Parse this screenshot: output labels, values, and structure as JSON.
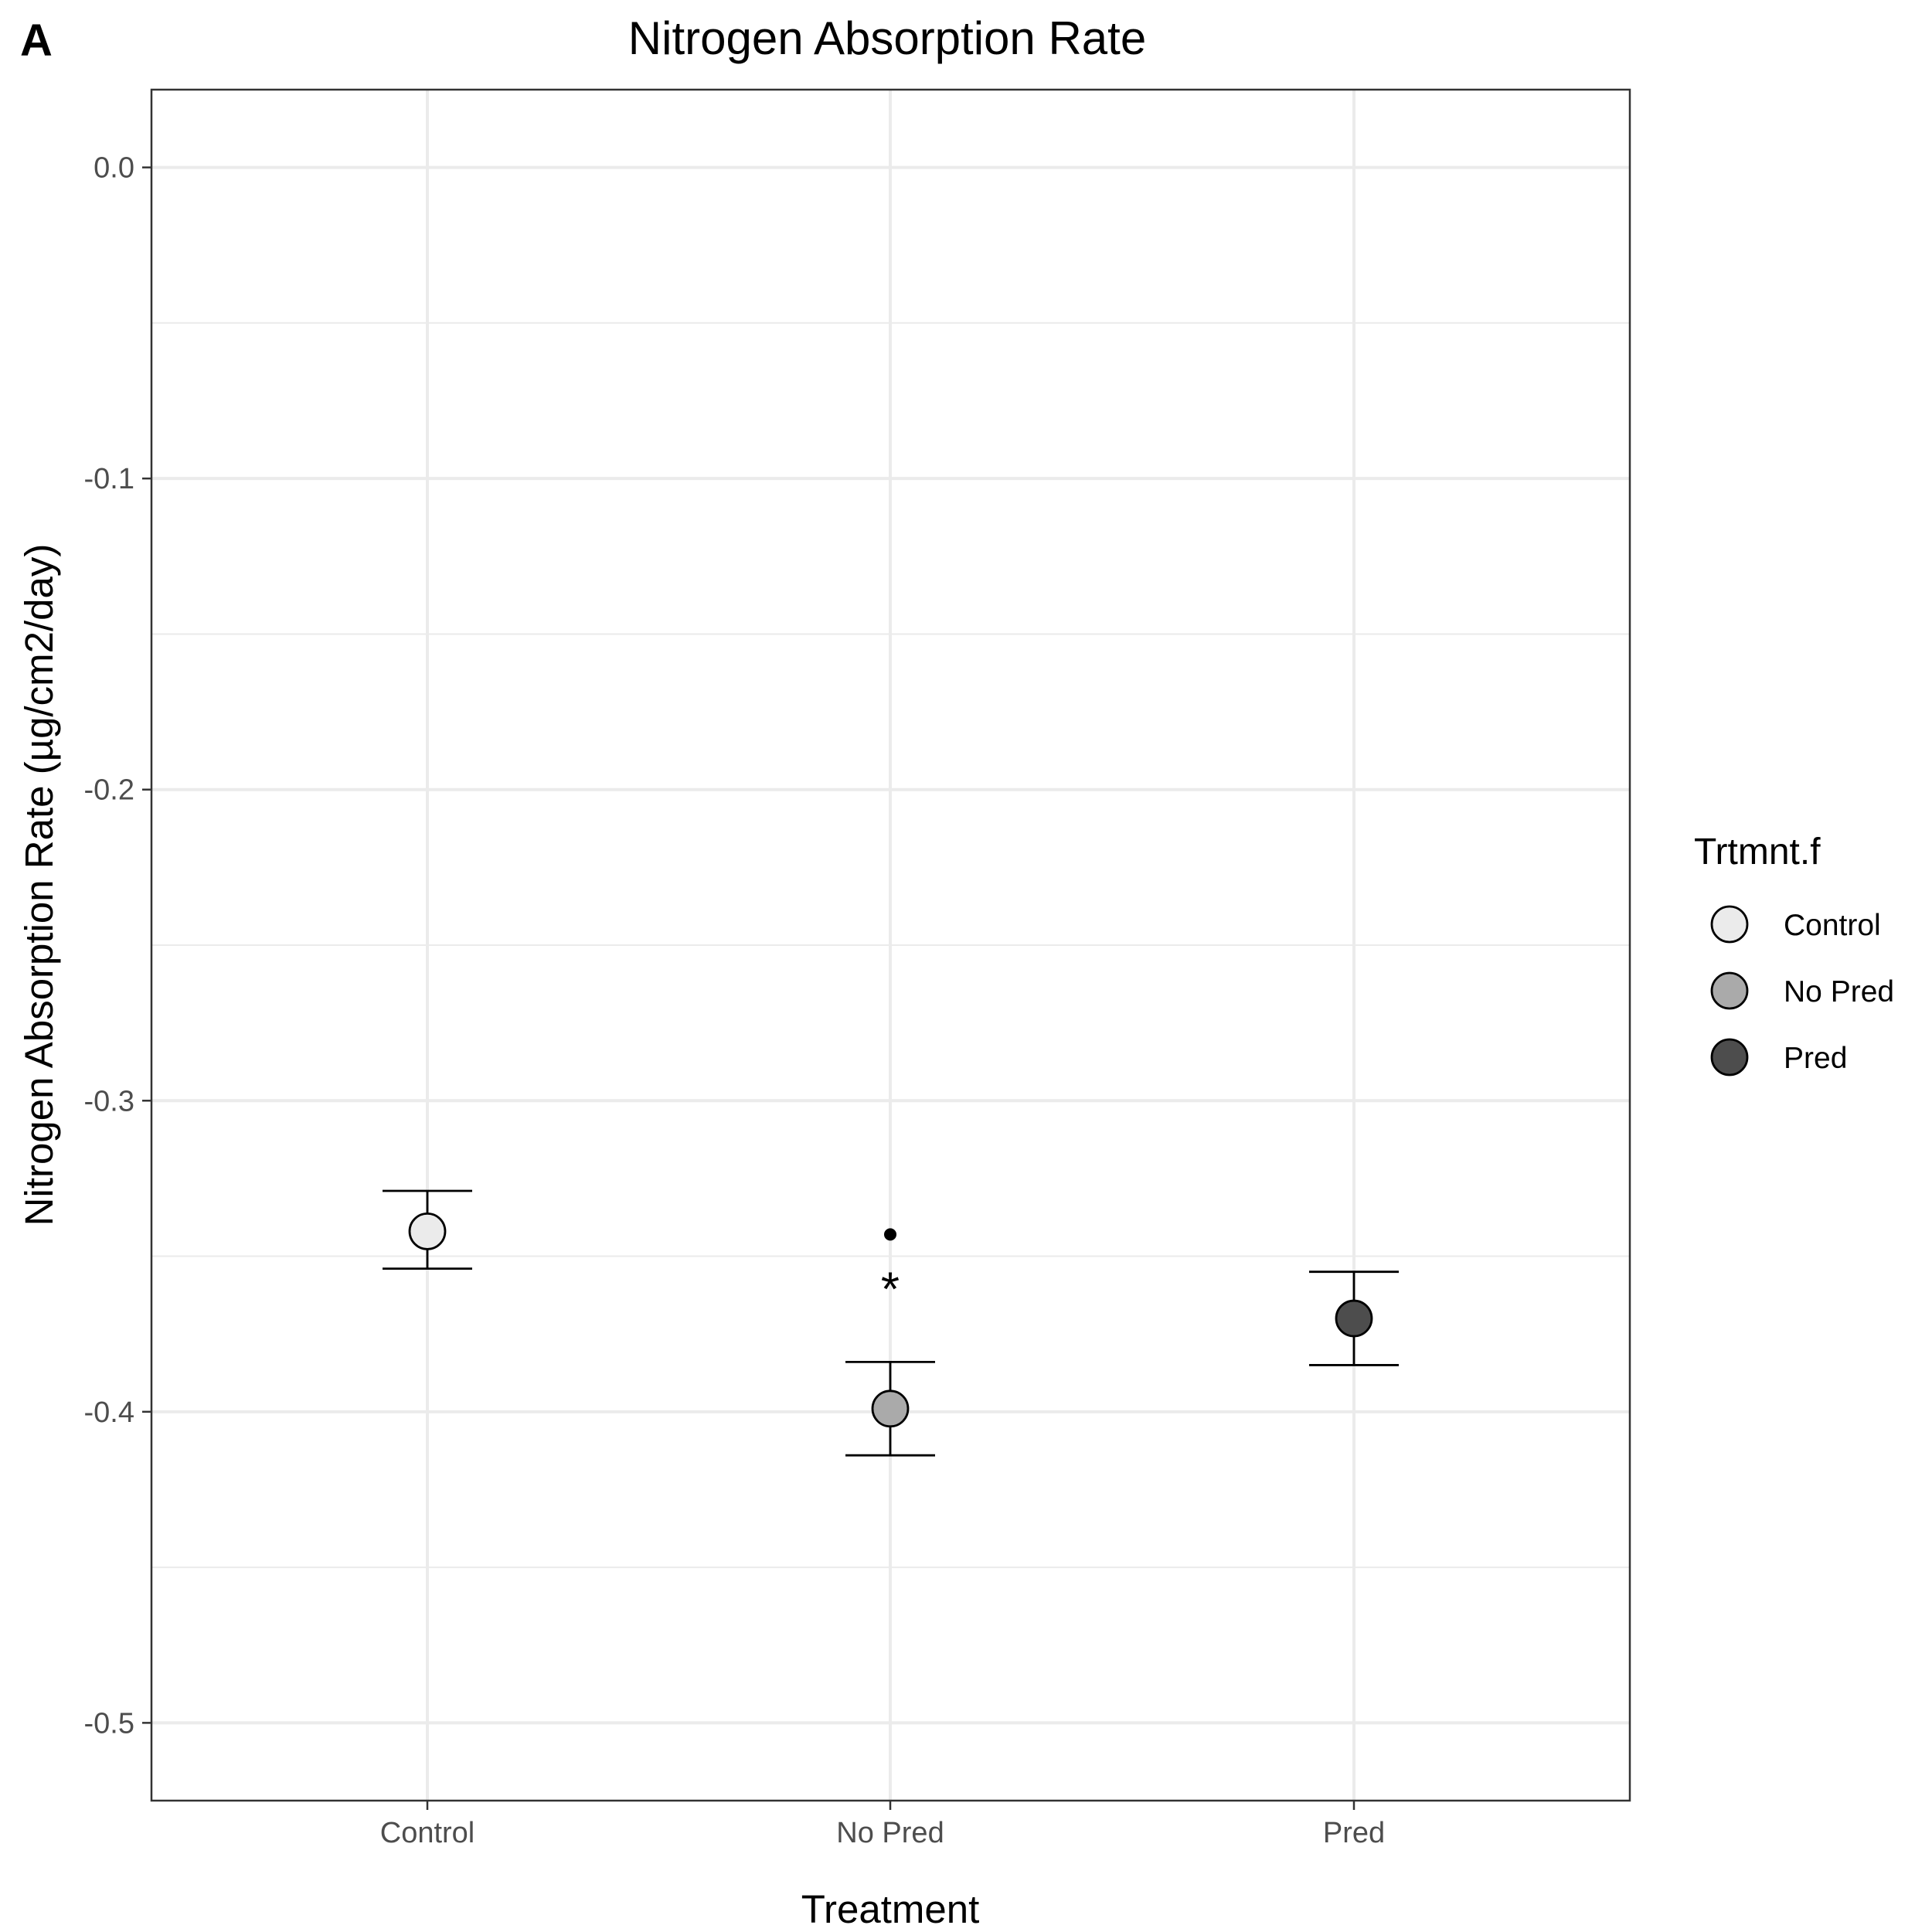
{
  "panel_label": "A",
  "chart_data": {
    "type": "scatter",
    "title": "Nitrogen Absorption Rate",
    "xlabel": "Treatment",
    "ylabel": "Nitrogen Absorption Rate (µg/cm2/day)",
    "categories": [
      "Control",
      "No Pred",
      "Pred"
    ],
    "ylim": [
      -0.525,
      0.025
    ],
    "y_ticks": [
      0.0,
      -0.1,
      -0.2,
      -0.3,
      -0.4,
      -0.5
    ],
    "y_tick_labels": [
      "0.0",
      "-0.1",
      "-0.2",
      "-0.3",
      "-0.4",
      "-0.5"
    ],
    "grid": true,
    "legend": {
      "title": "Trtmnt.f",
      "position": "right",
      "entries": [
        {
          "label": "Control",
          "color": "#ebebeb"
        },
        {
          "label": "No Pred",
          "color": "#aaaaaa"
        },
        {
          "label": "Pred",
          "color": "#4d4d4d"
        }
      ]
    },
    "series": [
      {
        "category": "Control",
        "mean": -0.342,
        "lower": -0.354,
        "upper": -0.329,
        "fill": "#ebebeb"
      },
      {
        "category": "No Pred",
        "mean": -0.399,
        "lower": -0.414,
        "upper": -0.384,
        "fill": "#aaaaaa"
      },
      {
        "category": "Pred",
        "mean": -0.37,
        "lower": -0.385,
        "upper": -0.355,
        "fill": "#4d4d4d"
      }
    ],
    "annotations": [
      {
        "category": "No Pred",
        "type": "outlier-point",
        "y": -0.343
      },
      {
        "category": "No Pred",
        "type": "text",
        "text": "*",
        "y": -0.357
      }
    ]
  }
}
